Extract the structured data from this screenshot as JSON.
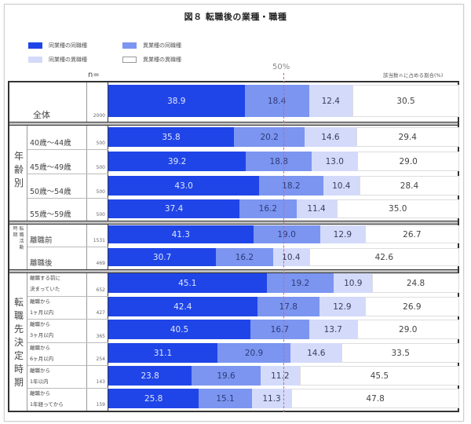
{
  "title": "図８ 転職後の業種・職種",
  "legend": [
    {
      "label": "同業種の同職種",
      "color": "#1f45e8"
    },
    {
      "label": "異業種の同職種",
      "color": "#7b95f0"
    },
    {
      "label": "同業種の異職種",
      "color": "#d3dafa"
    },
    {
      "label": "異業種の異職種",
      "color": "#ffffff"
    }
  ],
  "n_header": "n=",
  "fifty_label": "50%",
  "unit_label": "該当数ｎに占める割合(%)",
  "groups": {
    "age": "年齢別",
    "timing": "転職活動時期",
    "decision": "転職先決定時期"
  },
  "rows": [
    {
      "label": "全体",
      "n": "2000",
      "values": [
        "38.9",
        "18.4",
        "12.4",
        "30.5"
      ]
    },
    {
      "label": "40歳〜44歳",
      "n": "500",
      "values": [
        "35.8",
        "20.2",
        "14.6",
        "29.4"
      ]
    },
    {
      "label": "45歳〜49歳",
      "n": "500",
      "values": [
        "39.2",
        "18.8",
        "13.0",
        "29.0"
      ]
    },
    {
      "label": "50歳〜54歳",
      "n": "500",
      "values": [
        "43.0",
        "18.2",
        "10.4",
        "28.4"
      ]
    },
    {
      "label": "55歳〜59歳",
      "n": "500",
      "values": [
        "37.4",
        "16.2",
        "11.4",
        "35.0"
      ]
    },
    {
      "label": "離職前",
      "n": "1531",
      "values": [
        "41.3",
        "19.0",
        "12.9",
        "26.7"
      ]
    },
    {
      "label": "離職後",
      "n": "469",
      "values": [
        "30.7",
        "16.2",
        "10.4",
        "42.6"
      ]
    },
    {
      "label1": "離職する前に",
      "label2": "決まっていた",
      "n": "652",
      "values": [
        "45.1",
        "19.2",
        "10.9",
        "24.8"
      ]
    },
    {
      "label1": "離職から",
      "label2": "1ヶ月以内",
      "n": "427",
      "values": [
        "42.4",
        "17.8",
        "12.9",
        "26.9"
      ]
    },
    {
      "label1": "離職から",
      "label2": "3ヶ月以内",
      "n": "365",
      "values": [
        "40.5",
        "16.7",
        "13.7",
        "29.0"
      ]
    },
    {
      "label1": "離職から",
      "label2": "6ヶ月以内",
      "n": "254",
      "values": [
        "31.1",
        "20.9",
        "14.6",
        "33.5"
      ]
    },
    {
      "label1": "離職から",
      "label2": "1年以内",
      "n": "143",
      "values": [
        "23.8",
        "19.6",
        "11.2",
        "45.5"
      ]
    },
    {
      "label1": "離職から",
      "label2": "1年経ってから",
      "n": "159",
      "values": [
        "25.8",
        "15.1",
        "11.3",
        "47.8"
      ]
    }
  ],
  "chart_data": {
    "type": "bar",
    "orientation": "horizontal",
    "stacked": "100%",
    "title": "図８ 転職後の業種・職種",
    "xlabel": "該当数ｎに占める割合(%)",
    "reference_line": 50,
    "xlim": [
      0,
      100
    ],
    "categories": [
      "全体",
      "40歳〜44歳",
      "45歳〜49歳",
      "50歳〜54歳",
      "55歳〜59歳",
      "離職前",
      "離職後",
      "離職する前に決まっていた",
      "離職から1ヶ月以内",
      "離職から3ヶ月以内",
      "離職から6ヶ月以内",
      "離職から1年以内",
      "離職から1年経ってから"
    ],
    "n": [
      2000,
      500,
      500,
      500,
      500,
      1531,
      469,
      652,
      427,
      365,
      254,
      143,
      159
    ],
    "series": [
      {
        "name": "同業種の同職種",
        "values": [
          38.9,
          35.8,
          39.2,
          43.0,
          37.4,
          41.3,
          30.7,
          45.1,
          42.4,
          40.5,
          31.1,
          23.8,
          25.8
        ]
      },
      {
        "name": "異業種の同職種",
        "values": [
          18.4,
          20.2,
          18.8,
          18.2,
          16.2,
          19.0,
          16.2,
          19.2,
          17.8,
          16.7,
          20.9,
          19.6,
          15.1
        ]
      },
      {
        "name": "同業種の異職種",
        "values": [
          12.4,
          14.6,
          13.0,
          10.4,
          11.4,
          12.9,
          10.4,
          10.9,
          12.9,
          13.7,
          14.6,
          11.2,
          11.3
        ]
      },
      {
        "name": "異業種の異職種",
        "values": [
          30.5,
          29.4,
          29.0,
          28.4,
          35.0,
          26.7,
          42.6,
          24.8,
          26.9,
          29.0,
          33.5,
          45.5,
          47.8
        ]
      }
    ],
    "legend_position": "top"
  }
}
